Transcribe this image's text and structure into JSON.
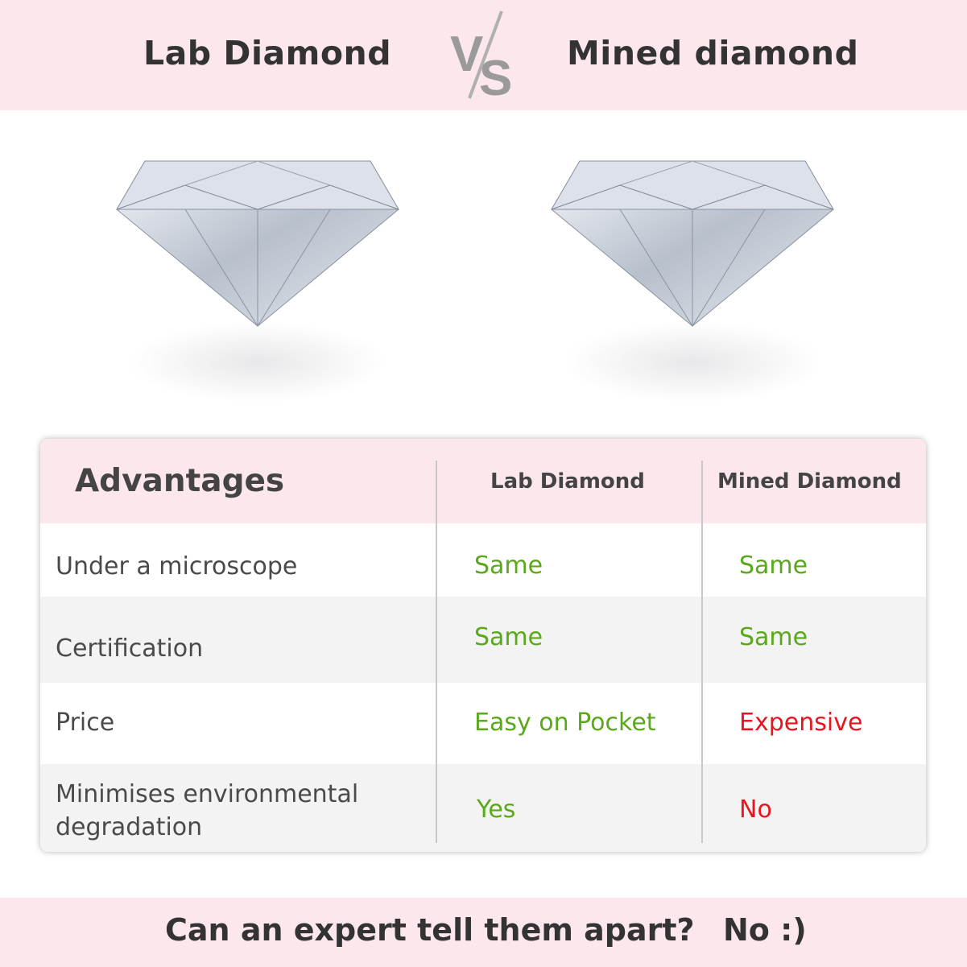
{
  "header": {
    "left_title": "Lab Diamond",
    "vs_text": "VS",
    "right_title": "Mined diamond"
  },
  "colors": {
    "pink_band": "#fce8ec",
    "same_green": "#5aa81b",
    "bad_red": "#e8141e",
    "vs_gray": "#9a9a9a"
  },
  "images": {
    "left": "lab-diamond-image",
    "right": "mined-diamond-image"
  },
  "table": {
    "headers": [
      "Advantages",
      "Lab Diamond",
      "Mined Diamond"
    ],
    "rows": [
      {
        "label": "Under a microscope",
        "lab": "Same",
        "mined": "Same",
        "lab_color": "#5aa81b",
        "mined_color": "#5aa81b"
      },
      {
        "label": "Certification",
        "lab": "Same",
        "mined": "Same",
        "lab_color": "#5aa81b",
        "mined_color": "#5aa81b"
      },
      {
        "label": "Price",
        "lab": "Easy on Pocket",
        "mined": "Expensive",
        "lab_color": "#5aa81b",
        "mined_color": "#e8141e"
      },
      {
        "label": "Minimises environmental degradation",
        "lab": "Yes",
        "mined": "No",
        "lab_color": "#5aa81b",
        "mined_color": "#e8141e"
      }
    ]
  },
  "footer": {
    "question": "Can an expert tell them apart?",
    "answer": "No :)"
  }
}
